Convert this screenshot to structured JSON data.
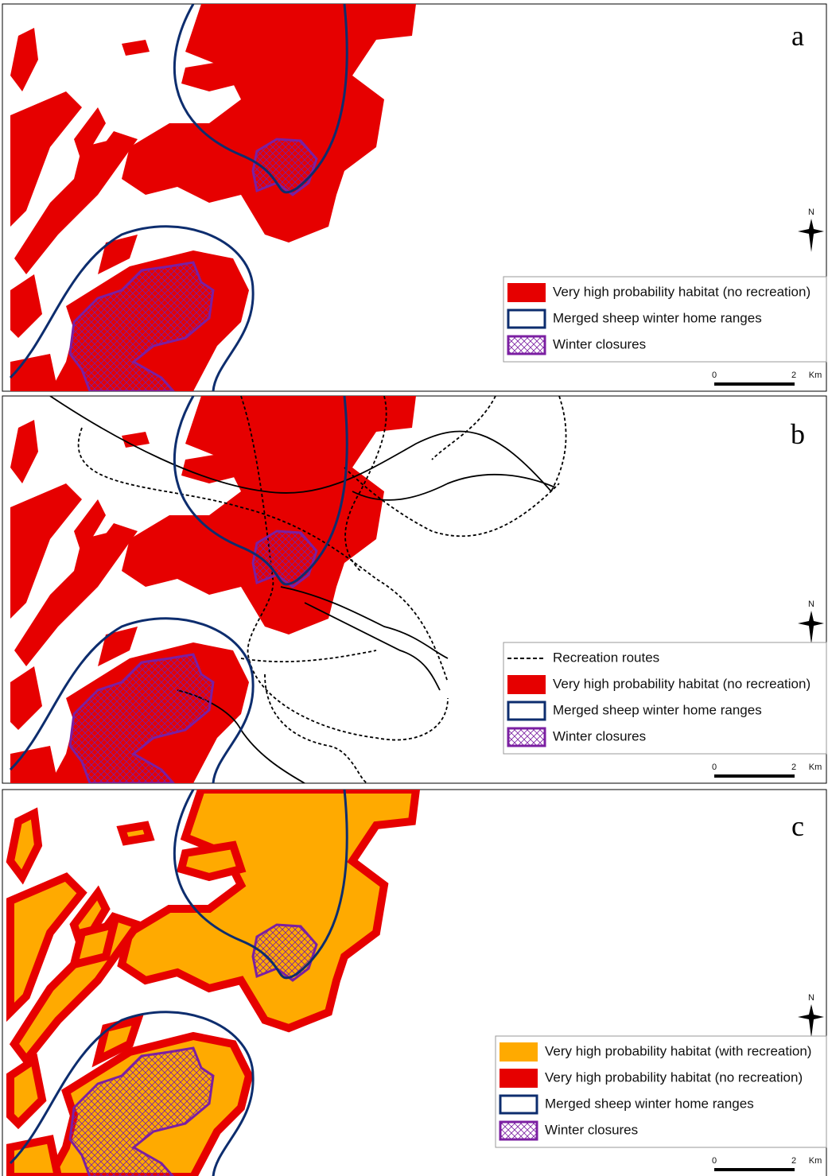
{
  "panels": [
    {
      "label": "a",
      "north": "N",
      "legend": [
        {
          "text": "Very high probability habitat (no recreation)",
          "symbol": "fill",
          "color": "#e60000"
        },
        {
          "text": "Merged sheep winter home ranges",
          "symbol": "outline",
          "color": "#0d2d6e"
        },
        {
          "text": "Winter closures",
          "symbol": "hatch",
          "color": "#7b1fa2"
        }
      ],
      "scale": {
        "start": 0,
        "end": 2,
        "unit": "Km"
      }
    },
    {
      "label": "b",
      "north": "N",
      "legend": [
        {
          "text": "Recreation routes",
          "symbol": "dash",
          "color": "#000000"
        },
        {
          "text": "Very high probability habitat (no recreation)",
          "symbol": "fill",
          "color": "#e60000"
        },
        {
          "text": "Merged sheep winter home ranges",
          "symbol": "outline",
          "color": "#0d2d6e"
        },
        {
          "text": "Winter closures",
          "symbol": "hatch",
          "color": "#7b1fa2"
        }
      ],
      "scale": {
        "start": 0,
        "end": 2,
        "unit": "Km"
      }
    },
    {
      "label": "c",
      "north": "N",
      "legend": [
        {
          "text": "Very high probability habitat (with recreation)",
          "symbol": "fill",
          "color": "#ffaa00"
        },
        {
          "text": "Very high probability habitat (no recreation)",
          "symbol": "fill",
          "color": "#e60000"
        },
        {
          "text": "Merged sheep winter home ranges",
          "symbol": "outline",
          "color": "#0d2d6e"
        },
        {
          "text": "Winter closures",
          "symbol": "hatch",
          "color": "#7b1fa2"
        }
      ],
      "scale": {
        "start": 0,
        "end": 2,
        "unit": "Km"
      }
    }
  ]
}
